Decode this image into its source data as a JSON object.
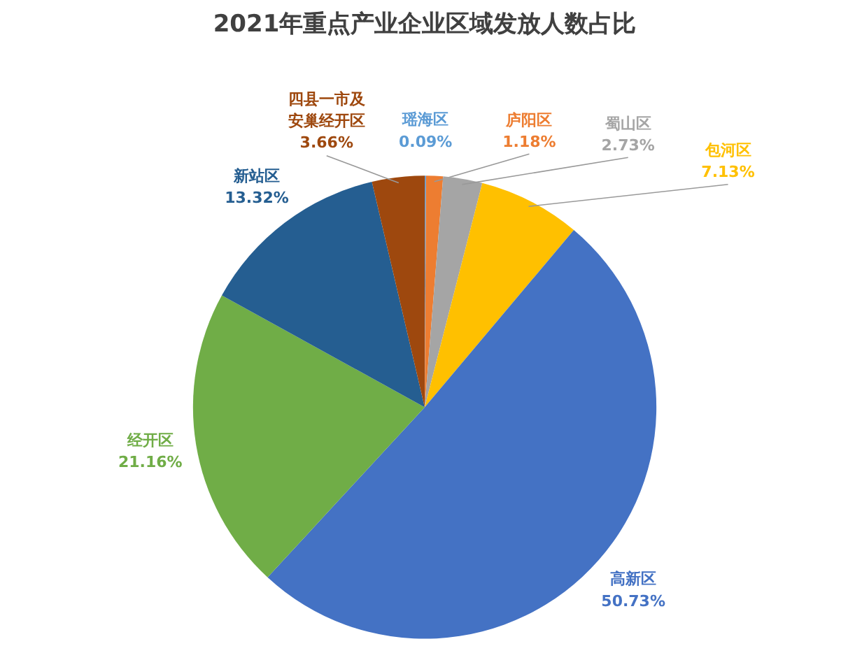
{
  "chart_data": {
    "type": "pie",
    "title": "2021年重点产业企业区域发放人数占比",
    "categories": [
      "瑶海区",
      "庐阳区",
      "蜀山区",
      "包河区",
      "高新区",
      "经开区",
      "新站区",
      "四县一市及安巢经开区"
    ],
    "values": [
      0.09,
      1.18,
      2.73,
      7.13,
      50.73,
      21.16,
      13.32,
      3.66
    ],
    "value_labels": [
      "0.09%",
      "1.18%",
      "2.73%",
      "7.13%",
      "50.73%",
      "21.16%",
      "13.32%",
      "3.66%"
    ],
    "colors": [
      "#5b9bd5",
      "#ed7d31",
      "#a5a5a5",
      "#ffc000",
      "#4472c4",
      "#70ad47",
      "#255e91",
      "#9e480e"
    ]
  }
}
